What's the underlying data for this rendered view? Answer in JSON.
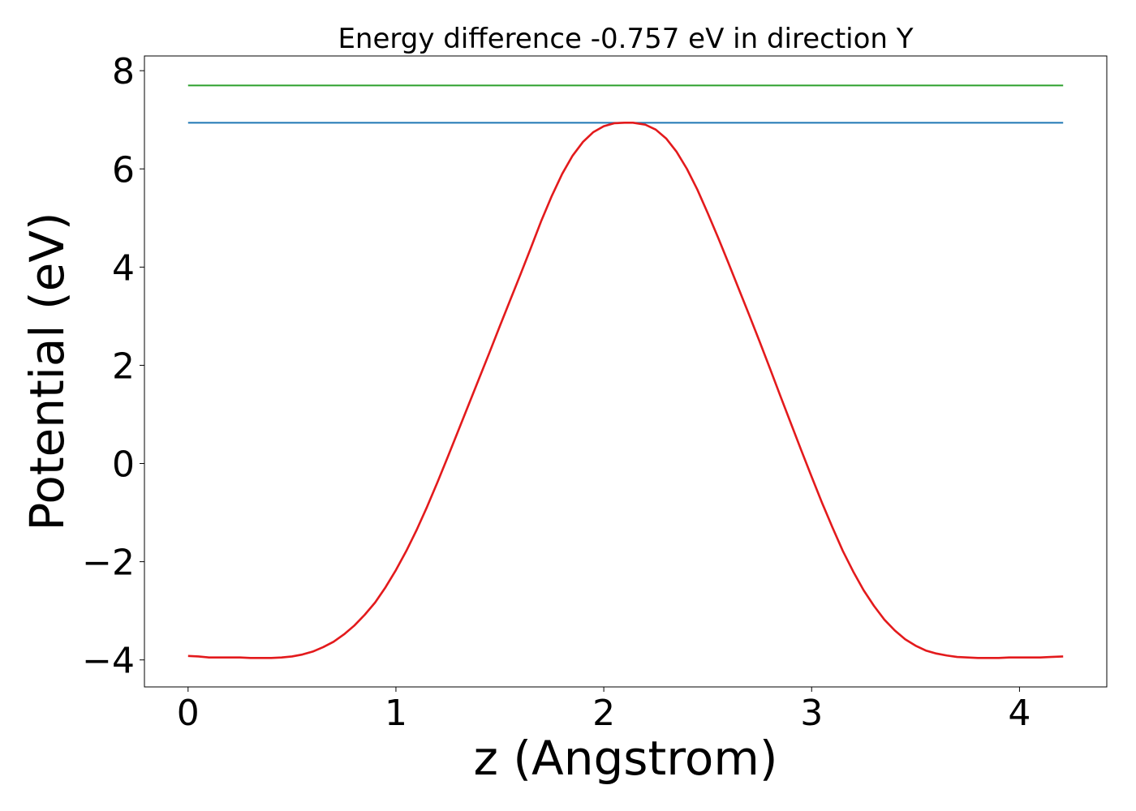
{
  "chart_data": {
    "type": "line",
    "title": "Energy difference -0.757 eV in direction Y",
    "xlabel": "z (Angstrom)",
    "ylabel": "Potential (eV)",
    "xlim": [
      -0.21,
      4.42
    ],
    "ylim": [
      -4.55,
      8.3
    ],
    "xticks": [
      0,
      1,
      2,
      3,
      4
    ],
    "xtick_labels": [
      "0",
      "1",
      "2",
      "3",
      "4"
    ],
    "yticks": [
      -4,
      -2,
      0,
      2,
      4,
      6,
      8
    ],
    "ytick_labels": [
      "−4",
      "−2",
      "0",
      "2",
      "4",
      "6",
      "8"
    ],
    "grid": false,
    "series": [
      {
        "color": "#2ca02c",
        "x": [
          0,
          4.21
        ],
        "y": [
          7.7,
          7.7
        ]
      },
      {
        "color": "#1f77b4",
        "x": [
          0,
          4.21
        ],
        "y": [
          6.94,
          6.94
        ]
      },
      {
        "color": "#e31a1c",
        "x": [
          0,
          0.05,
          0.1,
          0.15,
          0.2,
          0.25,
          0.3,
          0.35,
          0.4,
          0.45,
          0.5,
          0.55,
          0.6,
          0.65,
          0.7,
          0.75,
          0.8,
          0.85,
          0.9,
          0.95,
          1.0,
          1.05,
          1.1,
          1.15,
          1.2,
          1.25,
          1.3,
          1.35,
          1.4,
          1.45,
          1.5,
          1.55,
          1.6,
          1.65,
          1.7,
          1.75,
          1.8,
          1.85,
          1.9,
          1.95,
          2.0,
          2.05,
          2.1,
          2.14,
          2.2,
          2.25,
          2.3,
          2.35,
          2.4,
          2.45,
          2.5,
          2.55,
          2.6,
          2.65,
          2.7,
          2.75,
          2.8,
          2.85,
          2.9,
          2.95,
          3.0,
          3.05,
          3.1,
          3.15,
          3.2,
          3.25,
          3.3,
          3.35,
          3.4,
          3.45,
          3.5,
          3.55,
          3.6,
          3.65,
          3.7,
          3.75,
          3.8,
          3.85,
          3.9,
          3.95,
          4.0,
          4.05,
          4.1,
          4.15,
          4.21
        ],
        "y": [
          -3.92,
          -3.93,
          -3.95,
          -3.95,
          -3.95,
          -3.95,
          -3.96,
          -3.96,
          -3.96,
          -3.95,
          -3.93,
          -3.89,
          -3.83,
          -3.74,
          -3.63,
          -3.48,
          -3.3,
          -3.08,
          -2.83,
          -2.52,
          -2.17,
          -1.78,
          -1.35,
          -0.88,
          -0.38,
          0.14,
          0.67,
          1.2,
          1.73,
          2.26,
          2.8,
          3.33,
          3.86,
          4.4,
          4.95,
          5.45,
          5.9,
          6.27,
          6.55,
          6.75,
          6.87,
          6.93,
          6.94,
          6.94,
          6.9,
          6.8,
          6.62,
          6.35,
          6.0,
          5.58,
          5.1,
          4.6,
          4.08,
          3.55,
          3.02,
          2.48,
          1.93,
          1.37,
          0.82,
          0.27,
          -0.27,
          -0.8,
          -1.3,
          -1.78,
          -2.2,
          -2.58,
          -2.9,
          -3.18,
          -3.4,
          -3.58,
          -3.71,
          -3.81,
          -3.87,
          -3.91,
          -3.94,
          -3.95,
          -3.96,
          -3.96,
          -3.96,
          -3.95,
          -3.95,
          -3.95,
          -3.95,
          -3.94,
          -3.93
        ]
      }
    ]
  }
}
